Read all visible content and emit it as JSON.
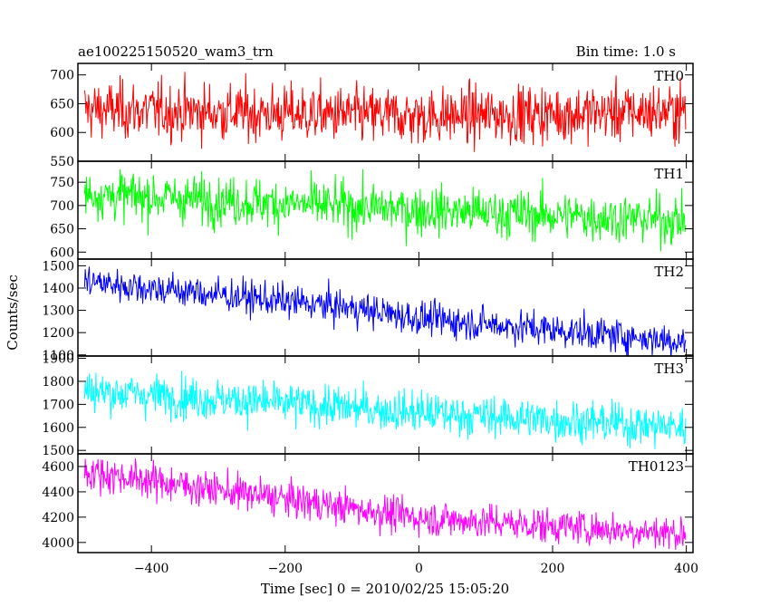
{
  "chart_data": {
    "type": "line",
    "title_left": "ae100225150520_wam3_trn",
    "title_right": "Bin time: 1.0 s",
    "xlabel": "Time [sec] 0 = 2010/02/25 15:05:20",
    "ylabel": "Counts/sec",
    "xlim": [
      -510,
      410
    ],
    "x_ticks": [
      -400,
      -200,
      0,
      200,
      400
    ],
    "x_range": [
      -500,
      399
    ],
    "bin_time": 1.0,
    "panels": [
      {
        "name": "TH0",
        "color": "#ff0000",
        "ylim": [
          550,
          720
        ],
        "y_ticks": [
          550,
          600,
          650,
          700
        ],
        "trend": [
          {
            "x": -500,
            "y": 640
          },
          {
            "x": 0,
            "y": 628
          },
          {
            "x": 399,
            "y": 637
          }
        ],
        "noise_sd": 25
      },
      {
        "name": "TH1",
        "color": "#00ff00",
        "ylim": [
          585,
          795
        ],
        "y_ticks": [
          600,
          650,
          700,
          750
        ],
        "trend": [
          {
            "x": -500,
            "y": 725
          },
          {
            "x": 0,
            "y": 690
          },
          {
            "x": 399,
            "y": 668
          }
        ],
        "noise_sd": 26
      },
      {
        "name": "TH2",
        "color": "#0000ff",
        "ylim": [
          1095,
          1530
        ],
        "y_ticks": [
          1100,
          1200,
          1300,
          1400,
          1500
        ],
        "trend": [
          {
            "x": -500,
            "y": 1430
          },
          {
            "x": -100,
            "y": 1310
          },
          {
            "x": 0,
            "y": 1265
          },
          {
            "x": 399,
            "y": 1160
          }
        ],
        "noise_sd": 38
      },
      {
        "name": "TH3",
        "color": "#00ffff",
        "ylim": [
          1485,
          1910
        ],
        "y_ticks": [
          1500,
          1600,
          1700,
          1800,
          1900
        ],
        "trend": [
          {
            "x": -500,
            "y": 1760
          },
          {
            "x": 0,
            "y": 1665
          },
          {
            "x": 399,
            "y": 1600
          }
        ],
        "noise_sd": 45
      },
      {
        "name": "TH0123",
        "color": "#ff00ff",
        "ylim": [
          3920,
          4700
        ],
        "y_ticks": [
          4000,
          4200,
          4400,
          4600
        ],
        "trend": [
          {
            "x": -500,
            "y": 4560
          },
          {
            "x": -100,
            "y": 4270
          },
          {
            "x": 0,
            "y": 4195
          },
          {
            "x": 399,
            "y": 4070
          }
        ],
        "noise_sd": 70
      }
    ]
  }
}
